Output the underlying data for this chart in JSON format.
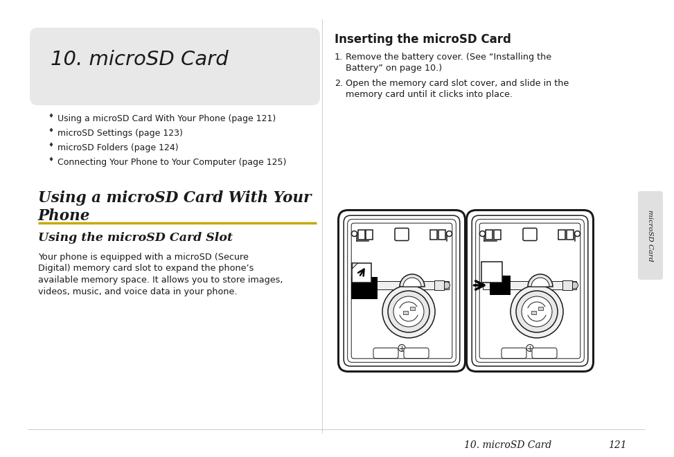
{
  "bg_color": "#ffffff",
  "header_box_color": "#e8e8e8",
  "header_title": "10. microSD Card",
  "bullet_items": [
    "Using a microSD Card With Your Phone (page 121)",
    "microSD Settings (page 123)",
    "microSD Folders (page 124)",
    "Connecting Your Phone to Your Computer (page 125)"
  ],
  "section1_title": "Using a microSD Card With Your\nPhone",
  "yellow_line_color": "#c8a800",
  "section2_title": "Using the microSD Card Slot",
  "body_text_lines": [
    "Your phone is equipped with a microSD (Secure",
    "Digital) memory card slot to expand the phone’s",
    "available memory space. It allows you to store images,",
    "videos, music, and voice data in your phone."
  ],
  "right_section_title": "Inserting the microSD Card",
  "step1_label": "1.",
  "step1_line1": "Remove the battery cover. (See “Installing the",
  "step1_line2": "Battery” on page 10.)",
  "step2_label": "2.",
  "step2_line1": "Open the memory card slot cover, and slide in the",
  "step2_line2": "memory card until it clicks into place.",
  "tab_text": "microSD Card",
  "footer_text": "10. microSD Card",
  "footer_page": "121",
  "divider_color": "#cccccc",
  "tab_bg": "#e0e0e0",
  "text_color": "#1a1a1a",
  "bullet_color": "#333333",
  "line_color": "#000000"
}
